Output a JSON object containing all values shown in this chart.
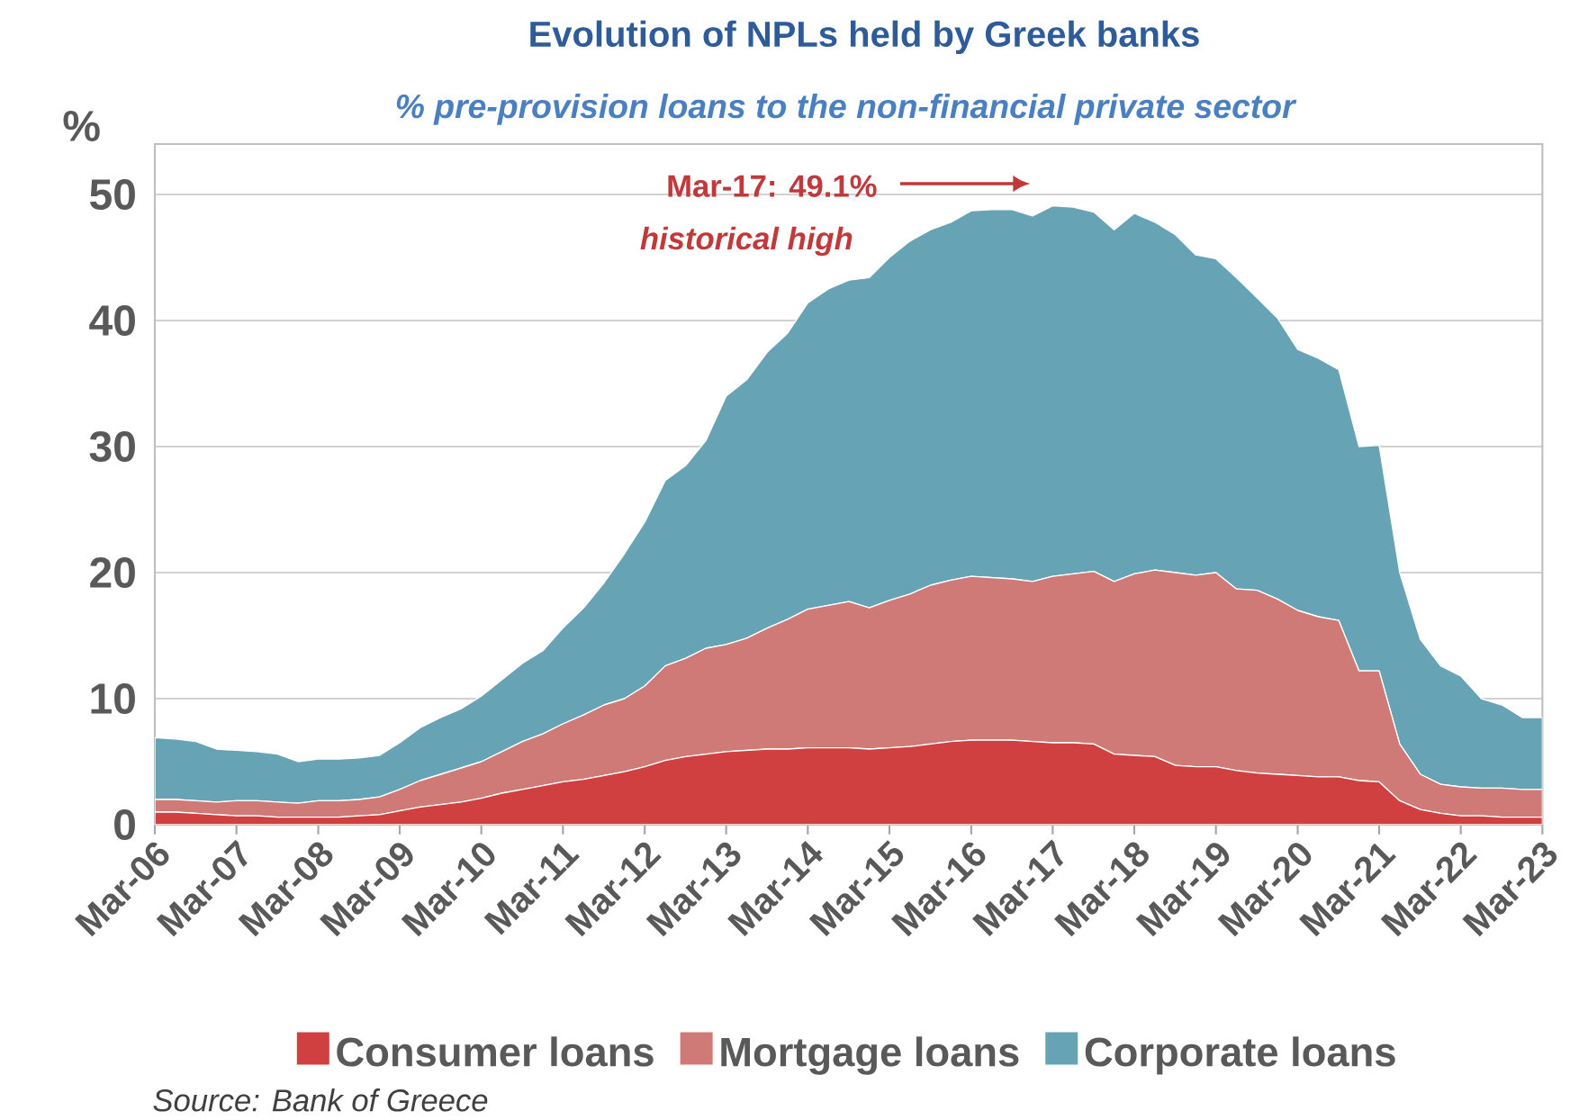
{
  "chart_data": {
    "type": "area",
    "stacked": true,
    "title": "Evolution of NPLs held by Greek banks",
    "subtitle": "% pre-provision loans to the non-financial private sector",
    "ylabel": "%",
    "x": [
      "2006-03",
      "2006-06",
      "2006-09",
      "2006-12",
      "2007-03",
      "2007-06",
      "2007-09",
      "2007-12",
      "2008-03",
      "2008-06",
      "2008-09",
      "2008-12",
      "2009-03",
      "2009-06",
      "2009-09",
      "2009-12",
      "2010-03",
      "2010-06",
      "2010-09",
      "2010-12",
      "2011-03",
      "2011-06",
      "2011-09",
      "2011-12",
      "2012-03",
      "2012-06",
      "2012-09",
      "2012-12",
      "2013-03",
      "2013-06",
      "2013-09",
      "2013-12",
      "2014-03",
      "2014-06",
      "2014-09",
      "2014-12",
      "2015-03",
      "2015-06",
      "2015-09",
      "2015-12",
      "2016-03",
      "2016-06",
      "2016-09",
      "2016-12",
      "2017-03",
      "2017-06",
      "2017-09",
      "2017-12",
      "2018-03",
      "2018-06",
      "2018-09",
      "2018-12",
      "2019-03",
      "2019-06",
      "2019-09",
      "2019-12",
      "2020-03",
      "2020-06",
      "2020-09",
      "2020-12",
      "2021-03",
      "2021-06",
      "2021-09",
      "2021-12",
      "2022-03",
      "2022-06",
      "2022-09",
      "2022-12",
      "2023-03"
    ],
    "series": [
      {
        "name": "Consumer loans",
        "color": "#d04040",
        "values": [
          1.0,
          1.0,
          0.9,
          0.8,
          0.7,
          0.7,
          0.6,
          0.6,
          0.6,
          0.6,
          0.7,
          0.8,
          1.1,
          1.4,
          1.6,
          1.8,
          2.1,
          2.5,
          2.8,
          3.1,
          3.4,
          3.6,
          3.9,
          4.2,
          4.6,
          5.1,
          5.4,
          5.6,
          5.8,
          5.9,
          6.0,
          6.0,
          6.1,
          6.1,
          6.1,
          6.0,
          6.1,
          6.2,
          6.4,
          6.6,
          6.7,
          6.7,
          6.7,
          6.6,
          6.5,
          6.5,
          6.4,
          5.6,
          5.5,
          5.4,
          4.7,
          4.6,
          4.6,
          4.3,
          4.1,
          4.0,
          3.9,
          3.8,
          3.8,
          3.5,
          3.4,
          1.9,
          1.2,
          0.9,
          0.7,
          0.7,
          0.6,
          0.6,
          0.6
        ]
      },
      {
        "name": "Mortgage loans",
        "color": "#d07a78",
        "values": [
          1.0,
          1.0,
          1.0,
          1.0,
          1.2,
          1.2,
          1.2,
          1.1,
          1.3,
          1.3,
          1.3,
          1.4,
          1.7,
          2.1,
          2.4,
          2.7,
          2.9,
          3.3,
          3.8,
          4.1,
          4.6,
          5.1,
          5.6,
          5.8,
          6.4,
          7.5,
          7.8,
          8.4,
          8.5,
          8.9,
          9.6,
          10.3,
          11.0,
          11.3,
          11.6,
          11.2,
          11.7,
          12.1,
          12.6,
          12.8,
          13.0,
          12.9,
          12.8,
          12.7,
          13.2,
          13.4,
          13.7,
          13.7,
          14.4,
          14.8,
          15.3,
          15.2,
          15.4,
          14.4,
          14.5,
          13.9,
          13.1,
          12.7,
          12.4,
          8.7,
          8.8,
          4.5,
          2.8,
          2.3,
          2.3,
          2.2,
          2.3,
          2.2,
          2.2
        ]
      },
      {
        "name": "Corporate loans",
        "color": "#66a3b5",
        "values": [
          4.9,
          4.8,
          4.7,
          4.2,
          4.0,
          3.9,
          3.8,
          3.3,
          3.3,
          3.3,
          3.3,
          3.3,
          3.7,
          4.2,
          4.5,
          4.7,
          5.2,
          5.7,
          6.2,
          6.6,
          7.6,
          8.5,
          9.7,
          11.5,
          13.0,
          14.7,
          15.3,
          16.5,
          19.7,
          20.5,
          21.9,
          22.7,
          24.3,
          25.1,
          25.5,
          26.2,
          27.2,
          28.0,
          28.2,
          28.4,
          29.0,
          29.2,
          29.3,
          29.0,
          29.4,
          29.1,
          28.5,
          27.9,
          28.6,
          27.6,
          26.8,
          25.4,
          24.9,
          24.7,
          23.2,
          22.3,
          20.7,
          20.5,
          19.9,
          17.8,
          17.9,
          13.6,
          10.7,
          9.4,
          8.8,
          7.1,
          6.6,
          5.7,
          5.7
        ]
      }
    ],
    "xlim": [
      "2006-03",
      "2023-03"
    ],
    "xticks": [
      {
        "value": "2006-03",
        "label": "Mar-06"
      },
      {
        "value": "2007-03",
        "label": "Mar-07"
      },
      {
        "value": "2008-03",
        "label": "Mar-08"
      },
      {
        "value": "2009-03",
        "label": "Mar-09"
      },
      {
        "value": "2010-03",
        "label": "Mar-10"
      },
      {
        "value": "2011-03",
        "label": "Mar-11"
      },
      {
        "value": "2012-03",
        "label": "Mar-12"
      },
      {
        "value": "2013-03",
        "label": "Mar-13"
      },
      {
        "value": "2014-03",
        "label": "Mar-14"
      },
      {
        "value": "2015-03",
        "label": "Mar-15"
      },
      {
        "value": "2016-03",
        "label": "Mar-16"
      },
      {
        "value": "2017-03",
        "label": "Mar-17"
      },
      {
        "value": "2018-03",
        "label": "Mar-18"
      },
      {
        "value": "2019-03",
        "label": "Mar-19"
      },
      {
        "value": "2020-03",
        "label": "Mar-20"
      },
      {
        "value": "2021-03",
        "label": "Mar-21"
      },
      {
        "value": "2022-03",
        "label": "Mar-22"
      },
      {
        "value": "2023-03",
        "label": "Mar-23"
      }
    ],
    "ylim": [
      0,
      54
    ],
    "yticks": [
      0,
      10,
      20,
      30,
      40,
      50
    ],
    "grid": "y",
    "legend": "bottom",
    "annotations": [
      "Mar-17: 49.1%",
      "historical  high",
      "Source: Bank of Greece"
    ]
  }
}
